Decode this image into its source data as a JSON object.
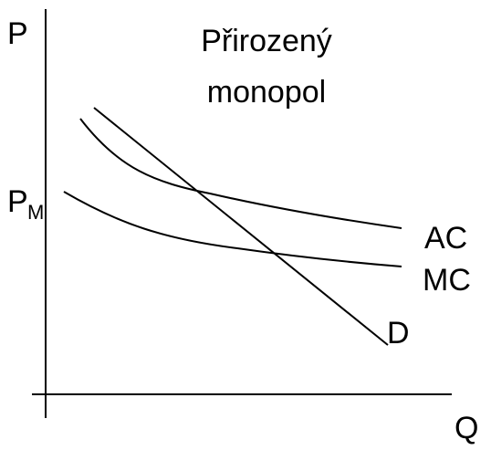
{
  "title": [
    "Přirozený",
    "monopol"
  ],
  "axes": {
    "y_label": "P",
    "x_label": "Q"
  },
  "price_label": {
    "main": "P",
    "subscript": "M"
  },
  "curves": [
    {
      "label": "AC"
    },
    {
      "label": "MC"
    },
    {
      "label": "D"
    }
  ]
}
